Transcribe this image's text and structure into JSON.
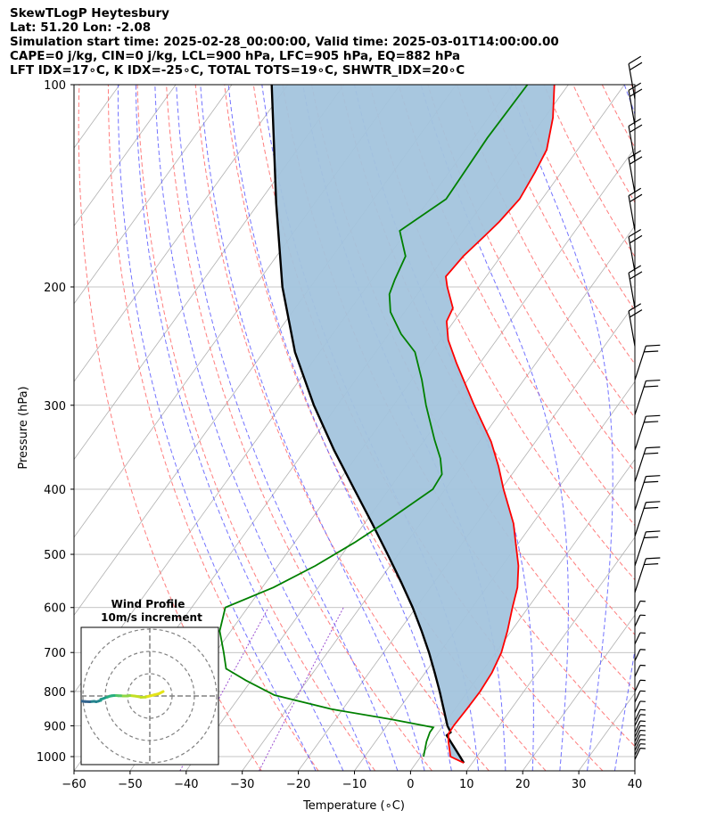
{
  "header": {
    "lines": [
      "SkewTLogP Heytesbury",
      "Lat: 51.20   Lon: -2.08",
      "Simulation start time: 2025-02-28_00:00:00, Valid time: 2025-03-01T14:00:00.00",
      "CAPE=0 j/kg, CIN=0 j/kg, LCL=900 hPa, LFC=905 hPa, EQ=882 hPa",
      "LFT IDX=17∘C, K IDX=-25∘C, TOTAL TOTS=19∘C, SHWTR_IDX=20∘C"
    ]
  },
  "colors": {
    "temperature": "#ff0000",
    "dewpoint": "#008000",
    "parcel": "#000000",
    "cape_fill": "#a3c4dd",
    "dry_adiabat": "#ff6666",
    "moist_adiabat": "#5a5aff",
    "mixing_ratio": "#9a4dd0",
    "isotherm": "#b0b0b0"
  },
  "chart_data": {
    "type": "line",
    "title": "SkewTLogP Heytesbury",
    "xlabel": "Temperature (∘C)",
    "ylabel": "Pressure (hPa)",
    "xlim": [
      -60,
      40
    ],
    "ylim": [
      1050,
      100
    ],
    "yscale": "log",
    "xticks": [
      "−60",
      "−50",
      "−40",
      "−30",
      "−20",
      "−10",
      "0",
      "10",
      "20",
      "30",
      "40"
    ],
    "yticks": [
      "100",
      "200",
      "300",
      "400",
      "500",
      "600",
      "700",
      "800",
      "900",
      "1000"
    ],
    "grid": true,
    "series": [
      {
        "key": "temperature",
        "points": [
          [
            1022,
            8.5
          ],
          [
            1000,
            5.3
          ],
          [
            950,
            3
          ],
          [
            925,
            2
          ],
          [
            900,
            1.9
          ],
          [
            850,
            2.1
          ],
          [
            800,
            2.2
          ],
          [
            750,
            1.9
          ],
          [
            700,
            1.0
          ],
          [
            650,
            -0.7
          ],
          [
            600,
            -2.8
          ],
          [
            560,
            -4.5
          ],
          [
            520,
            -7.1
          ],
          [
            480,
            -10.6
          ],
          [
            450,
            -13.4
          ],
          [
            400,
            -19.6
          ],
          [
            370,
            -23.4
          ],
          [
            340,
            -27.9
          ],
          [
            300,
            -35.6
          ],
          [
            260,
            -44.1
          ],
          [
            240,
            -48.6
          ],
          [
            225,
            -51.3
          ],
          [
            215,
            -51.9
          ],
          [
            200,
            -55.6
          ],
          [
            193,
            -57.2
          ],
          [
            180,
            -56.7
          ],
          [
            168,
            -55.5
          ],
          [
            160,
            -54.7
          ],
          [
            148,
            -54.0
          ],
          [
            135,
            -54.7
          ],
          [
            125,
            -55.5
          ],
          [
            112,
            -58.5
          ],
          [
            100,
            -62.5
          ]
        ]
      },
      {
        "key": "dewpoint",
        "points": [
          [
            1000,
            0.5
          ],
          [
            950,
            -0.9
          ],
          [
            920,
            -1.5
          ],
          [
            905,
            -1.5
          ],
          [
            880,
            -10
          ],
          [
            850,
            -22
          ],
          [
            810,
            -34
          ],
          [
            770,
            -41
          ],
          [
            740,
            -46
          ],
          [
            700,
            -48.5
          ],
          [
            650,
            -52
          ],
          [
            600,
            -54
          ],
          [
            560,
            -48
          ],
          [
            520,
            -43.3
          ],
          [
            480,
            -39.3
          ],
          [
            450,
            -36.6
          ],
          [
            400,
            -32.2
          ],
          [
            380,
            -32.5
          ],
          [
            360,
            -34.8
          ],
          [
            338,
            -38.2
          ],
          [
            300,
            -44.2
          ],
          [
            275,
            -48.2
          ],
          [
            250,
            -53
          ],
          [
            235,
            -57.8
          ],
          [
            218,
            -62.5
          ],
          [
            205,
            -65
          ],
          [
            195,
            -65.9
          ],
          [
            180,
            -67
          ],
          [
            165,
            -71.3
          ],
          [
            148,
            -67.1
          ],
          [
            120,
            -67.6
          ],
          [
            100,
            -67.3
          ]
        ]
      },
      {
        "key": "parcel",
        "points": [
          [
            1022,
            8.5
          ],
          [
            1000,
            7.0
          ],
          [
            950,
            3.4
          ],
          [
            930,
            1.9
          ],
          [
            920,
            2.2
          ],
          [
            900,
            0.8
          ],
          [
            850,
            -2.0
          ],
          [
            800,
            -5.0
          ],
          [
            750,
            -8.3
          ],
          [
            700,
            -11.9
          ],
          [
            650,
            -16.0
          ],
          [
            600,
            -20.6
          ],
          [
            550,
            -25.9
          ],
          [
            500,
            -31.9
          ],
          [
            450,
            -38.6
          ],
          [
            400,
            -46.2
          ],
          [
            350,
            -54.8
          ],
          [
            300,
            -64.2
          ],
          [
            250,
            -74.4
          ],
          [
            200,
            -85.0
          ],
          [
            150,
            -96.9
          ],
          [
            100,
            -112.9
          ]
        ]
      }
    ],
    "wind_barbs_hpa": [
      1010,
      995,
      980,
      965,
      950,
      935,
      920,
      900,
      885,
      860,
      830,
      800,
      760,
      720,
      680,
      640,
      610,
      570,
      520,
      470,
      430,
      390,
      350,
      310,
      275,
      245,
      215,
      190,
      165,
      145,
      130,
      115,
      105
    ],
    "hodograph": {
      "title": "Wind Profile",
      "subtitle": "10m/s increment",
      "rings_ms": [
        10,
        20,
        30
      ],
      "trace_uv": [
        [
          6,
          2
        ],
        [
          4,
          1
        ],
        [
          2,
          0.5
        ],
        [
          0,
          0
        ],
        [
          -2,
          -0.5
        ],
        [
          -4,
          -0.6
        ],
        [
          -5,
          -0.3
        ],
        [
          -7,
          0
        ],
        [
          -9,
          0.2
        ],
        [
          -10,
          0
        ],
        [
          -11,
          0
        ],
        [
          -12,
          0
        ],
        [
          -13,
          0.1
        ],
        [
          -14,
          0.1
        ],
        [
          -15,
          0.2
        ],
        [
          -16,
          0.2
        ],
        [
          -17,
          0.1
        ],
        [
          -18,
          -0.1
        ],
        [
          -19,
          -0.5
        ],
        [
          -20,
          -0.8
        ],
        [
          -21,
          -1.2
        ],
        [
          -22,
          -1.5
        ],
        [
          -22,
          -2
        ],
        [
          -23,
          -2.3
        ],
        [
          -24,
          -2.6
        ],
        [
          -25,
          -2.4
        ],
        [
          -27,
          -2.6
        ],
        [
          -29,
          -2.5
        ],
        [
          -31,
          -2.3
        ],
        [
          -33,
          -1.5
        ],
        [
          -35,
          -0.8
        ],
        [
          -36,
          -0.5
        ],
        [
          -37,
          0
        ],
        [
          -38,
          0.3
        ],
        [
          -39,
          0.8
        ],
        [
          -40,
          1.3
        ],
        [
          -41,
          2.0
        ]
      ]
    }
  }
}
